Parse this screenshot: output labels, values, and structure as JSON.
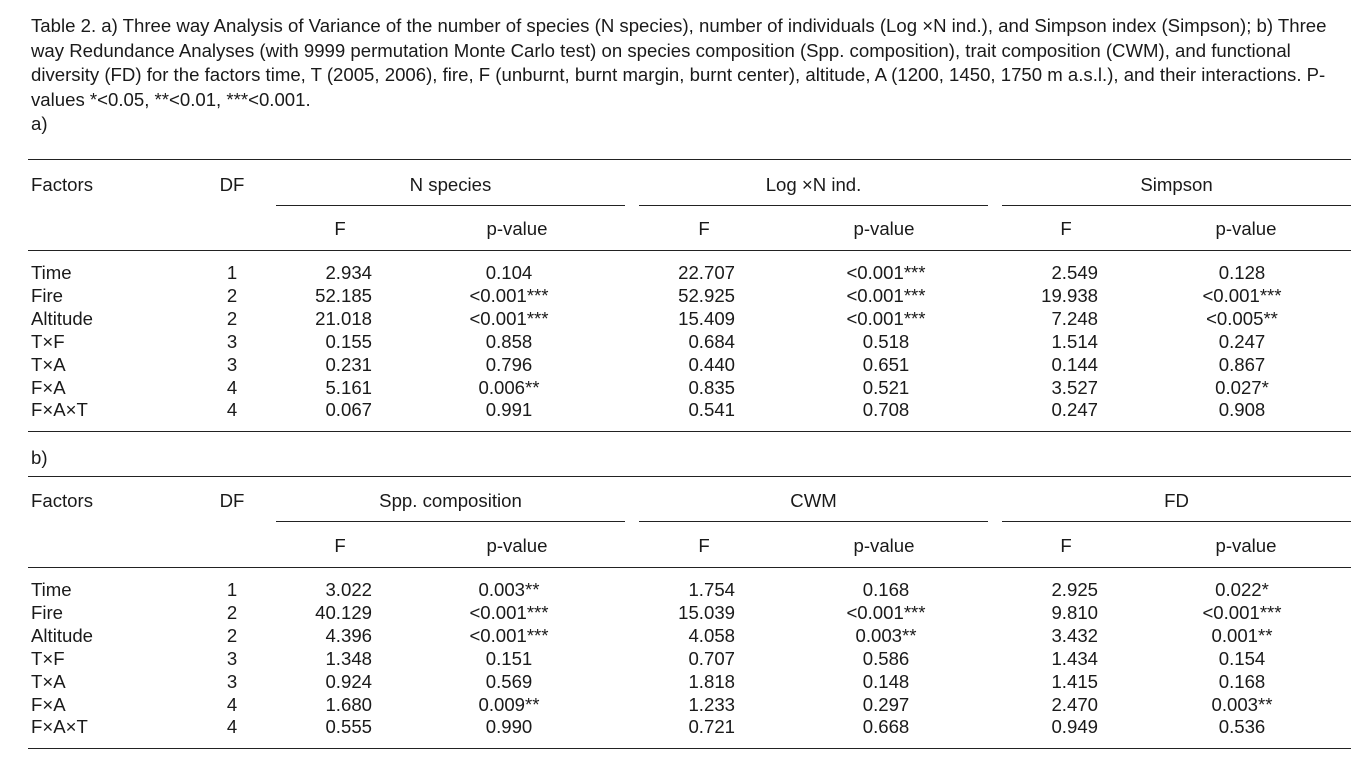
{
  "caption": "Table 2.  a) Three way Analysis of Variance of the number of species (N species), number of individuals (Log ×N ind.), and Simpson index (Simpson); b) Three way Redundance Analyses (with 9999 permutation Monte Carlo test) on species composition (Spp. composition), trait composition (CWM), and functional diversity (FD) for the factors time, T (2005, 2006), fire, F (unburnt, burnt margin, burnt center), altitude, A (1200, 1450, 1750 m a.s.l.), and their interactions. P-values *<0.05, **<0.01, ***<0.001.",
  "table_a": {
    "label": "a)",
    "factors_header": "Factors",
    "df_header": "DF",
    "groups": [
      "N species",
      "Log ×N ind.",
      "Simpson"
    ],
    "sub_headers": [
      "F",
      "p-value",
      "F",
      "p-value",
      "F",
      "p-value"
    ],
    "rows": [
      {
        "factor": "Time",
        "df": "1",
        "values": [
          "2.934",
          "0.104",
          "22.707",
          "<0.001***",
          "2.549",
          "0.128"
        ]
      },
      {
        "factor": "Fire",
        "df": "2",
        "values": [
          "52.185",
          "<0.001***",
          "52.925",
          "<0.001***",
          "19.938",
          "<0.001***"
        ]
      },
      {
        "factor": "Altitude",
        "df": "2",
        "values": [
          "21.018",
          "<0.001***",
          "15.409",
          "<0.001***",
          "7.248",
          "<0.005**"
        ]
      },
      {
        "factor": "T×F",
        "df": "3",
        "values": [
          "0.155",
          "0.858",
          "0.684",
          "0.518",
          "1.514",
          "0.247"
        ]
      },
      {
        "factor": "T×A",
        "df": "3",
        "values": [
          "0.231",
          "0.796",
          "0.440",
          "0.651",
          "0.144",
          "0.867"
        ]
      },
      {
        "factor": "F×A",
        "df": "4",
        "values": [
          "5.161",
          "0.006**",
          "0.835",
          "0.521",
          "3.527",
          "0.027*"
        ]
      },
      {
        "factor": "F×A×T",
        "df": "4",
        "values": [
          "0.067",
          "0.991",
          "0.541",
          "0.708",
          "0.247",
          "0.908"
        ]
      }
    ]
  },
  "table_b": {
    "label": "b)",
    "factors_header": "Factors",
    "df_header": "DF",
    "groups": [
      "Spp. composition",
      "CWM",
      "FD"
    ],
    "sub_headers": [
      "F",
      "p-value",
      "F",
      "p-value",
      "F",
      "p-value"
    ],
    "rows": [
      {
        "factor": "Time",
        "df": "1",
        "values": [
          "3.022",
          "0.003**",
          "1.754",
          "0.168",
          "2.925",
          "0.022*"
        ]
      },
      {
        "factor": "Fire",
        "df": "2",
        "values": [
          "40.129",
          "<0.001***",
          "15.039",
          "<0.001***",
          "9.810",
          "<0.001***"
        ]
      },
      {
        "factor": "Altitude",
        "df": "2",
        "values": [
          "4.396",
          "<0.001***",
          "4.058",
          "0.003**",
          "3.432",
          "0.001**"
        ]
      },
      {
        "factor": "T×F",
        "df": "3",
        "values": [
          "1.348",
          "0.151",
          "0.707",
          "0.586",
          "1.434",
          "0.154"
        ]
      },
      {
        "factor": "T×A",
        "df": "3",
        "values": [
          "0.924",
          "0.569",
          "1.818",
          "0.148",
          "1.415",
          "0.168"
        ]
      },
      {
        "factor": "F×A",
        "df": "4",
        "values": [
          "1.680",
          "0.009**",
          "1.233",
          "0.297",
          "2.470",
          "0.003**"
        ]
      },
      {
        "factor": "F×A×T",
        "df": "4",
        "values": [
          "0.555",
          "0.990",
          "0.721",
          "0.668",
          "0.949",
          "0.536"
        ]
      }
    ]
  }
}
